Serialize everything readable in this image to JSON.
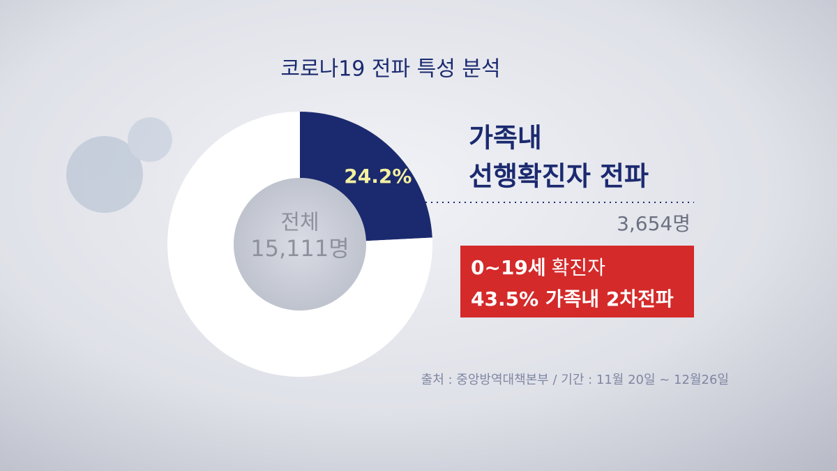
{
  "chart_data": {
    "type": "donut",
    "title": "코로나19 전파 특성 분석",
    "values": [
      24.2,
      75.8
    ],
    "value_labels": [
      "24.2%",
      null
    ],
    "colors": [
      "#1b2a6f",
      "#ffffff"
    ],
    "center_label": [
      "전체",
      "15,111명"
    ],
    "callout": {
      "lines": [
        "가족내",
        "선행확진자 전파"
      ],
      "value_label": "3,654명"
    },
    "highlight": {
      "lines": [
        [
          "0~19세",
          "확진자"
        ],
        [
          "43.5% 가족내 2차전파"
        ]
      ]
    },
    "source": "출처 : 중앙방역대책본부 / 기간 : 11월 20일 ~ 12월26일"
  }
}
